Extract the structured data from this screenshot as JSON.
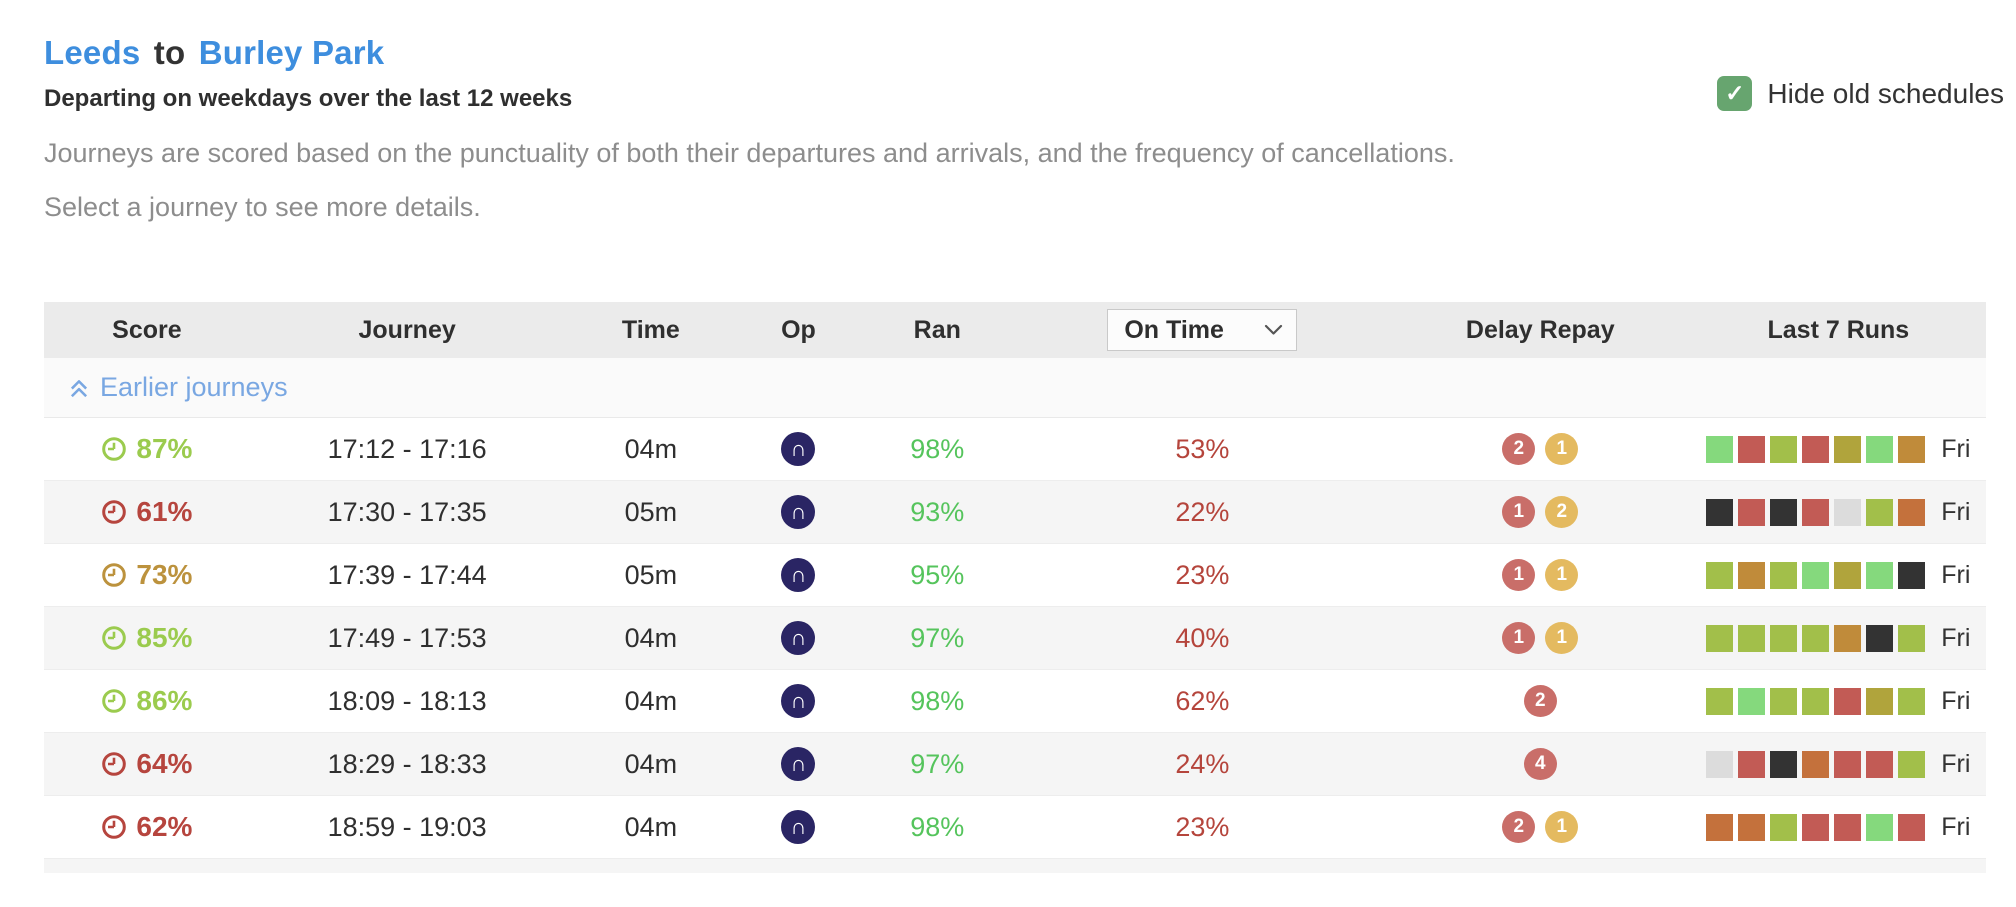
{
  "page": {
    "title": {
      "origin": "Leeds",
      "connector": "to",
      "destination": "Burley Park"
    },
    "subtitle": "Departing on weekdays over the last 12 weeks",
    "description": "Journeys are scored based on the punctuality of both their departures and arrivals, and the frequency of cancellations.",
    "instruction": "Select a journey to see more details.",
    "hide_old": {
      "label": "Hide old schedules",
      "checked": true,
      "checkmark": "✓"
    }
  },
  "table": {
    "headers": {
      "score": "Score",
      "journey": "Journey",
      "time": "Time",
      "op": "Op",
      "ran": "Ran",
      "delay_repay": "Delay Repay",
      "last7": "Last 7 Runs"
    },
    "on_time_filter": {
      "selected": "On Time"
    },
    "earlier_link_label": "Earlier journeys",
    "operator": {
      "name": "northern",
      "glyph": "∩"
    },
    "rows": [
      {
        "score": "87%",
        "score_level": "green",
        "journey": "17:12 - 17:16",
        "time": "04m",
        "ran": "98%",
        "on_time": "53%",
        "delay_repay": [
          {
            "value": "2",
            "level": "red"
          },
          {
            "value": "1",
            "level": "amber"
          }
        ],
        "last7": [
          "light-green",
          "red",
          "yellow-green",
          "red",
          "olive",
          "light-green",
          "gold"
        ],
        "day": "Fri"
      },
      {
        "score": "61%",
        "score_level": "red",
        "journey": "17:30 - 17:35",
        "time": "05m",
        "ran": "93%",
        "on_time": "22%",
        "delay_repay": [
          {
            "value": "1",
            "level": "red"
          },
          {
            "value": "2",
            "level": "amber"
          }
        ],
        "last7": [
          "black",
          "red",
          "black",
          "red",
          "gray",
          "yellow-green",
          "orange"
        ],
        "day": "Fri"
      },
      {
        "score": "73%",
        "score_level": "gold",
        "journey": "17:39 - 17:44",
        "time": "05m",
        "ran": "95%",
        "on_time": "23%",
        "delay_repay": [
          {
            "value": "1",
            "level": "red"
          },
          {
            "value": "1",
            "level": "amber"
          }
        ],
        "last7": [
          "yellow-green",
          "gold",
          "yellow-green",
          "light-green",
          "olive",
          "light-green",
          "black"
        ],
        "day": "Fri"
      },
      {
        "score": "85%",
        "score_level": "green",
        "journey": "17:49 - 17:53",
        "time": "04m",
        "ran": "97%",
        "on_time": "40%",
        "delay_repay": [
          {
            "value": "1",
            "level": "red"
          },
          {
            "value": "1",
            "level": "amber"
          }
        ],
        "last7": [
          "yellow-green",
          "yellow-green",
          "yellow-green",
          "yellow-green",
          "gold",
          "black",
          "yellow-green"
        ],
        "day": "Fri"
      },
      {
        "score": "86%",
        "score_level": "green",
        "journey": "18:09 - 18:13",
        "time": "04m",
        "ran": "98%",
        "on_time": "62%",
        "delay_repay": [
          {
            "value": "2",
            "level": "red"
          }
        ],
        "last7": [
          "yellow-green",
          "light-green",
          "yellow-green",
          "yellow-green",
          "red",
          "olive",
          "yellow-green"
        ],
        "day": "Fri"
      },
      {
        "score": "64%",
        "score_level": "red",
        "journey": "18:29 - 18:33",
        "time": "04m",
        "ran": "97%",
        "on_time": "24%",
        "delay_repay": [
          {
            "value": "4",
            "level": "red"
          }
        ],
        "last7": [
          "gray",
          "red",
          "black",
          "orange",
          "red",
          "red",
          "yellow-green"
        ],
        "day": "Fri"
      },
      {
        "score": "62%",
        "score_level": "red",
        "journey": "18:59 - 19:03",
        "time": "04m",
        "ran": "98%",
        "on_time": "23%",
        "delay_repay": [
          {
            "value": "2",
            "level": "red"
          },
          {
            "value": "1",
            "level": "amber"
          }
        ],
        "last7": [
          "orange",
          "orange",
          "yellow-green",
          "red",
          "red",
          "light-green",
          "red"
        ],
        "day": "Fri"
      }
    ]
  },
  "colors": {
    "score_green": "#9bcb4e",
    "score_red": "#b6453e",
    "score_gold": "#bc923d",
    "ran_green": "#55c45c",
    "on_time_red": "#b5453c",
    "badge_red": "#c96e69",
    "badge_amber": "#e4ba60",
    "link_blue": "#3e8ede",
    "earlier_blue": "#79a7e2",
    "operator_navy": "#2a2564",
    "checkbox_green": "#67a56f",
    "squares": {
      "light-green": "#85d97d",
      "yellow-green": "#a2bf4a",
      "olive": "#b0a43c",
      "gold": "#c08b3a",
      "orange": "#c4713c",
      "red": "#c25b55",
      "black": "#333333",
      "gray": "#dcdcdc"
    }
  }
}
